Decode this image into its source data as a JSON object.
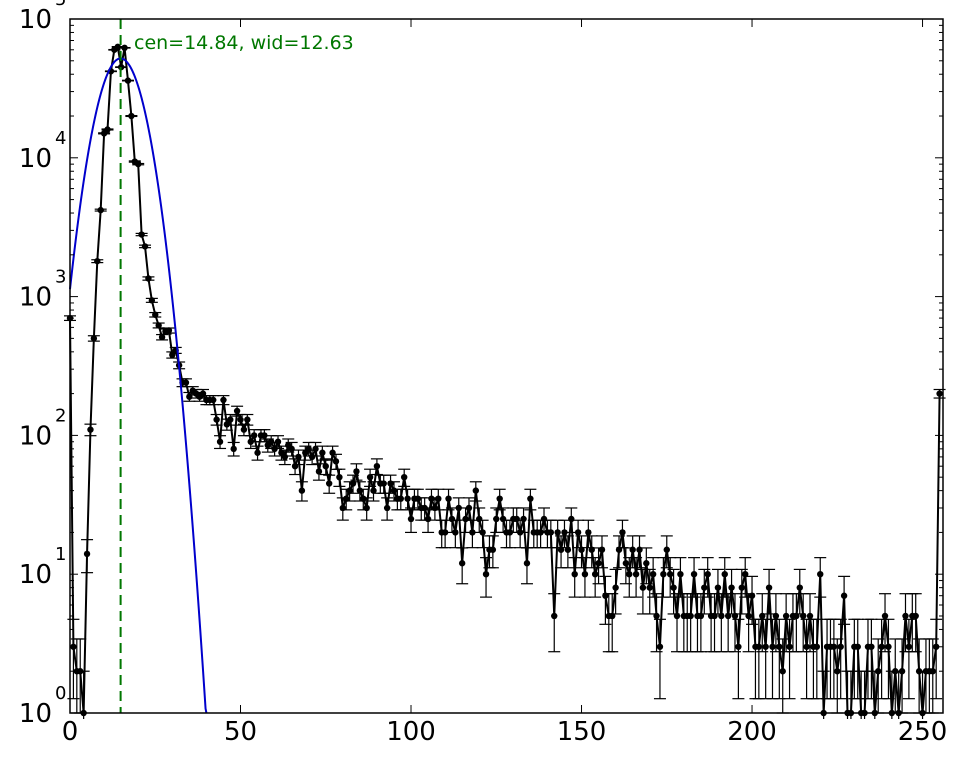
{
  "chart_data": {
    "type": "scatter",
    "title": "",
    "xlabel": "",
    "ylabel": "",
    "xlim": [
      0,
      256
    ],
    "ylim": [
      1,
      100000
    ],
    "yscale": "log",
    "grid": false,
    "x_ticks": [
      0,
      50,
      100,
      150,
      200,
      250
    ],
    "y_ticks": [
      {
        "value": 1,
        "base": "10",
        "exp": "0"
      },
      {
        "value": 10,
        "base": "10",
        "exp": "1"
      },
      {
        "value": 100,
        "base": "10",
        "exp": "2"
      },
      {
        "value": 1000,
        "base": "10",
        "exp": "3"
      },
      {
        "value": 10000,
        "base": "10",
        "exp": "4"
      },
      {
        "value": 100000,
        "base": "10",
        "exp": "5"
      }
    ],
    "annotation": "cen=14.84, wid=12.63",
    "centroid": 14.84,
    "width": 12.63,
    "fit_peak": 52000,
    "colors": {
      "data": "#000000",
      "fit": "#0000cc",
      "centroid_line": "#007700",
      "annotation": "#007700"
    },
    "series": [
      {
        "type": "errorbar",
        "color": "#000000",
        "points": [
          [
            0,
            700
          ],
          [
            1,
            3
          ],
          [
            2,
            2
          ],
          [
            3,
            2
          ],
          [
            4,
            1
          ],
          [
            5,
            14
          ],
          [
            6,
            110
          ],
          [
            7,
            500
          ],
          [
            8,
            1800
          ],
          [
            9,
            4200
          ],
          [
            10,
            15000
          ],
          [
            11,
            16000
          ],
          [
            12,
            42000
          ],
          [
            13,
            60000
          ],
          [
            14,
            63000
          ],
          [
            15,
            45000
          ],
          [
            16,
            62000
          ],
          [
            17,
            36000
          ],
          [
            18,
            20000
          ],
          [
            19,
            9400
          ],
          [
            20,
            9000
          ],
          [
            21,
            2800
          ],
          [
            22,
            2300
          ],
          [
            23,
            1350
          ],
          [
            24,
            940
          ],
          [
            25,
            740
          ],
          [
            26,
            620
          ],
          [
            27,
            510
          ],
          [
            28,
            560
          ],
          [
            29,
            570
          ],
          [
            30,
            380
          ],
          [
            31,
            410
          ],
          [
            32,
            320
          ],
          [
            33,
            240
          ],
          [
            34,
            240
          ],
          [
            35,
            190
          ],
          [
            36,
            210
          ],
          [
            37,
            200
          ],
          [
            38,
            190
          ],
          [
            39,
            200
          ],
          [
            40,
            180
          ],
          [
            41,
            180
          ],
          [
            42,
            180
          ],
          [
            43,
            130
          ],
          [
            44,
            90
          ],
          [
            45,
            180
          ],
          [
            46,
            120
          ],
          [
            47,
            130
          ],
          [
            48,
            80
          ],
          [
            49,
            150
          ],
          [
            50,
            130
          ],
          [
            51,
            110
          ],
          [
            52,
            130
          ],
          [
            53,
            90
          ],
          [
            54,
            100
          ],
          [
            55,
            75
          ],
          [
            56,
            100
          ],
          [
            57,
            100
          ],
          [
            58,
            85
          ],
          [
            59,
            90
          ],
          [
            60,
            80
          ],
          [
            61,
            90
          ],
          [
            62,
            75
          ],
          [
            63,
            70
          ],
          [
            64,
            85
          ],
          [
            65,
            80
          ],
          [
            66,
            60
          ],
          [
            67,
            70
          ],
          [
            68,
            40
          ],
          [
            69,
            75
          ],
          [
            70,
            80
          ],
          [
            71,
            70
          ],
          [
            72,
            80
          ],
          [
            73,
            55
          ],
          [
            74,
            75
          ],
          [
            75,
            60
          ],
          [
            76,
            45
          ],
          [
            77,
            75
          ],
          [
            78,
            65
          ],
          [
            79,
            50
          ],
          [
            80,
            30
          ],
          [
            81,
            35
          ],
          [
            82,
            40
          ],
          [
            83,
            45
          ],
          [
            84,
            55
          ],
          [
            85,
            40
          ],
          [
            86,
            35
          ],
          [
            87,
            30
          ],
          [
            88,
            50
          ],
          [
            89,
            40
          ],
          [
            90,
            60
          ],
          [
            91,
            45
          ],
          [
            92,
            45
          ],
          [
            93,
            30
          ],
          [
            94,
            45
          ],
          [
            95,
            40
          ],
          [
            96,
            35
          ],
          [
            97,
            35
          ],
          [
            98,
            50
          ],
          [
            99,
            35
          ],
          [
            100,
            25
          ],
          [
            101,
            35
          ],
          [
            102,
            35
          ],
          [
            103,
            30
          ],
          [
            104,
            30
          ],
          [
            105,
            25
          ],
          [
            106,
            35
          ],
          [
            107,
            30
          ],
          [
            108,
            35
          ],
          [
            109,
            20
          ],
          [
            110,
            20
          ],
          [
            111,
            35
          ],
          [
            112,
            25
          ],
          [
            113,
            20
          ],
          [
            114,
            30
          ],
          [
            115,
            12
          ],
          [
            116,
            25
          ],
          [
            117,
            30
          ],
          [
            118,
            20
          ],
          [
            119,
            40
          ],
          [
            120,
            25
          ],
          [
            121,
            20
          ],
          [
            122,
            10
          ],
          [
            123,
            15
          ],
          [
            124,
            15
          ],
          [
            125,
            25
          ],
          [
            126,
            35
          ],
          [
            127,
            25
          ],
          [
            128,
            20
          ],
          [
            129,
            20
          ],
          [
            130,
            25
          ],
          [
            131,
            25
          ],
          [
            132,
            20
          ],
          [
            133,
            25
          ],
          [
            134,
            12
          ],
          [
            135,
            35
          ],
          [
            136,
            20
          ],
          [
            137,
            20
          ],
          [
            138,
            20
          ],
          [
            139,
            25
          ],
          [
            140,
            20
          ],
          [
            141,
            20
          ],
          [
            142,
            5
          ],
          [
            143,
            20
          ],
          [
            144,
            15
          ],
          [
            145,
            20
          ],
          [
            146,
            15
          ],
          [
            147,
            25
          ],
          [
            148,
            10
          ],
          [
            149,
            20
          ],
          [
            150,
            15
          ],
          [
            151,
            10
          ],
          [
            152,
            20
          ],
          [
            153,
            15
          ],
          [
            154,
            10
          ],
          [
            155,
            12
          ],
          [
            156,
            15
          ],
          [
            157,
            7
          ],
          [
            158,
            5
          ],
          [
            159,
            5
          ],
          [
            160,
            8
          ],
          [
            161,
            15
          ],
          [
            162,
            20
          ],
          [
            163,
            12
          ],
          [
            164,
            10
          ],
          [
            165,
            15
          ],
          [
            166,
            10
          ],
          [
            167,
            15
          ],
          [
            168,
            8
          ],
          [
            169,
            12
          ],
          [
            170,
            8
          ],
          [
            171,
            10
          ],
          [
            172,
            5
          ],
          [
            173,
            3
          ],
          [
            174,
            10
          ],
          [
            175,
            15
          ],
          [
            176,
            10
          ],
          [
            177,
            8
          ],
          [
            178,
            5
          ],
          [
            179,
            10
          ],
          [
            180,
            5
          ],
          [
            181,
            5
          ],
          [
            182,
            5
          ],
          [
            183,
            10
          ],
          [
            184,
            5
          ],
          [
            185,
            5
          ],
          [
            186,
            8
          ],
          [
            187,
            10
          ],
          [
            188,
            5
          ],
          [
            189,
            5
          ],
          [
            190,
            8
          ],
          [
            191,
            5
          ],
          [
            192,
            10
          ],
          [
            193,
            5
          ],
          [
            194,
            8
          ],
          [
            195,
            5
          ],
          [
            196,
            3
          ],
          [
            197,
            8
          ],
          [
            198,
            10
          ],
          [
            199,
            5
          ],
          [
            200,
            7
          ],
          [
            201,
            3
          ],
          [
            202,
            3
          ],
          [
            203,
            5
          ],
          [
            204,
            3
          ],
          [
            205,
            8
          ],
          [
            206,
            3
          ],
          [
            207,
            5
          ],
          [
            208,
            3
          ],
          [
            209,
            2
          ],
          [
            210,
            5
          ],
          [
            211,
            3
          ],
          [
            212,
            5
          ],
          [
            213,
            5
          ],
          [
            214,
            8
          ],
          [
            215,
            5
          ],
          [
            216,
            3
          ],
          [
            217,
            5
          ],
          [
            218,
            3
          ],
          [
            219,
            3
          ],
          [
            220,
            10
          ],
          [
            221,
            1
          ],
          [
            222,
            3
          ],
          [
            223,
            3
          ],
          [
            224,
            3
          ],
          [
            225,
            2
          ],
          [
            226,
            3
          ],
          [
            227,
            7
          ],
          [
            228,
            1
          ],
          [
            229,
            1
          ],
          [
            230,
            3
          ],
          [
            231,
            3
          ],
          [
            232,
            1
          ],
          [
            233,
            1
          ],
          [
            234,
            3
          ],
          [
            235,
            3
          ],
          [
            236,
            1
          ],
          [
            237,
            2
          ],
          [
            238,
            3
          ],
          [
            239,
            5
          ],
          [
            240,
            3
          ],
          [
            241,
            1
          ],
          [
            242,
            2
          ],
          [
            243,
            1
          ],
          [
            244,
            2
          ],
          [
            245,
            5
          ],
          [
            246,
            3
          ],
          [
            247,
            5
          ],
          [
            248,
            5
          ],
          [
            249,
            2
          ],
          [
            250,
            1
          ],
          [
            251,
            2
          ],
          [
            252,
            2
          ],
          [
            253,
            2
          ],
          [
            254,
            3
          ],
          [
            255,
            200
          ]
        ]
      },
      {
        "type": "gaussian-fit",
        "color": "#0000cc",
        "center": 14.84,
        "width": 12.63,
        "peak": 52000
      }
    ]
  }
}
